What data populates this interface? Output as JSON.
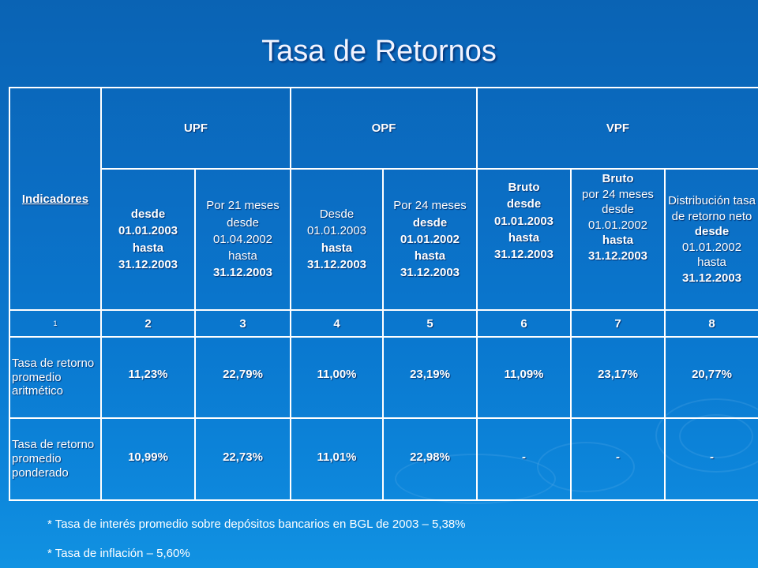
{
  "title": "Tasa de Retornos",
  "table": {
    "indicadores_label": "Indicadores",
    "groups": [
      "UPF",
      "OPF",
      "VPF"
    ],
    "subheaders": [
      [
        "desde",
        "01.01.2003",
        "hasta",
        "31.12.2003"
      ],
      [
        "Por  21 meses desde 01.04.2002 hasta",
        "31.12.2003"
      ],
      [
        "Desde 01.01.2003",
        "hasta",
        "31.12.2003"
      ],
      [
        "Por 24 meses",
        "desde",
        "01.01.2002",
        "hasta",
        "31.12.2003"
      ],
      [
        "Bruto",
        "desde",
        "01.01.2003",
        "hasta",
        "31.12.2003"
      ],
      [
        "Bruto",
        "por 24 meses",
        "desde 01.01.2002",
        "hasta",
        "31.12.2003"
      ],
      [
        "Distribución tasa de retorno neto",
        "desde",
        "01.01.2002 hasta",
        "31.12.2003"
      ]
    ],
    "number_row": [
      "1",
      "2",
      "3",
      "4",
      "5",
      "6",
      "7",
      "8"
    ],
    "rows": [
      {
        "label": "Tasa de retorno promedio aritmético",
        "values": [
          "11,23%",
          "22,79%",
          "11,00%",
          "23,19%",
          "11,09%",
          "23,17%",
          "20,77%"
        ]
      },
      {
        "label": "Tasa de retorno promedio ponderado",
        "values": [
          "10,99%",
          "22,73%",
          "11,01%",
          "22,98%",
          "-",
          "-",
          "-"
        ]
      }
    ]
  },
  "footnotes": [
    "* Tasa de interés promedio sobre depósitos bancarios en BGL de 2003 – 5,38%",
    "* Tasa de inflación – 5,60%"
  ]
}
